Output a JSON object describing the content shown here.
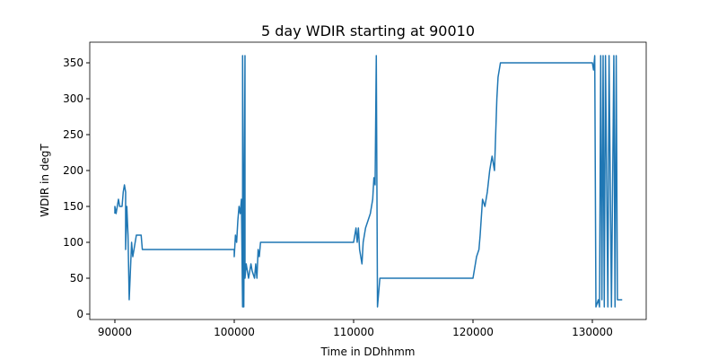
{
  "chart_data": {
    "type": "line",
    "title": "5 day WDIR starting at 90010",
    "x_label": "Time in DDhhmm",
    "y_label": "WDIR in degT",
    "color": "#1f77b4",
    "x": [
      90000,
      90000,
      90100,
      90200,
      90300,
      90400,
      90600,
      90700,
      90800,
      90900,
      90900,
      91000,
      91100,
      91200,
      91300,
      91400,
      91500,
      91600,
      91800,
      92200,
      92300,
      100000,
      100000,
      100100,
      100200,
      100300,
      100400,
      100500,
      100600,
      100700,
      100700,
      100800,
      100900,
      100900,
      101000,
      101200,
      101400,
      101500,
      101700,
      101800,
      101900,
      102000,
      102100,
      102200,
      110000,
      110100,
      110200,
      110300,
      110400,
      110500,
      110700,
      110800,
      111000,
      111200,
      111400,
      111600,
      111700,
      111800,
      111900,
      112000,
      112100,
      112200,
      120000,
      120100,
      120300,
      120500,
      120600,
      120800,
      121000,
      121200,
      121400,
      121600,
      121800,
      122000,
      122100,
      122300,
      130000,
      130100,
      130200,
      130300,
      130500,
      130600,
      130700,
      130800,
      130900,
      131000,
      131100,
      131300,
      131400,
      131600,
      131800,
      131900,
      132000,
      132100,
      132500
    ],
    "values": [
      140,
      150,
      140,
      150,
      160,
      150,
      150,
      170,
      180,
      170,
      90,
      150,
      110,
      20,
      60,
      100,
      80,
      90,
      110,
      110,
      90,
      90,
      80,
      110,
      100,
      130,
      150,
      140,
      160,
      10,
      360,
      10,
      360,
      50,
      70,
      50,
      70,
      60,
      50,
      70,
      50,
      90,
      80,
      100,
      100,
      110,
      120,
      100,
      120,
      90,
      70,
      100,
      120,
      130,
      140,
      160,
      190,
      180,
      360,
      10,
      30,
      50,
      50,
      60,
      80,
      90,
      110,
      160,
      150,
      170,
      200,
      220,
      200,
      300,
      330,
      350,
      350,
      340,
      360,
      10,
      20,
      10,
      360,
      20,
      360,
      10,
      360,
      10,
      360,
      10,
      360,
      10,
      360,
      20,
      20
    ],
    "xlim": [
      87895,
      134511
    ],
    "ylim": [
      -7.5,
      378.75
    ],
    "xticks": [
      90000,
      100000,
      110000,
      120000,
      130000
    ],
    "yticks": [
      0,
      50,
      100,
      150,
      200,
      250,
      300,
      350
    ]
  }
}
